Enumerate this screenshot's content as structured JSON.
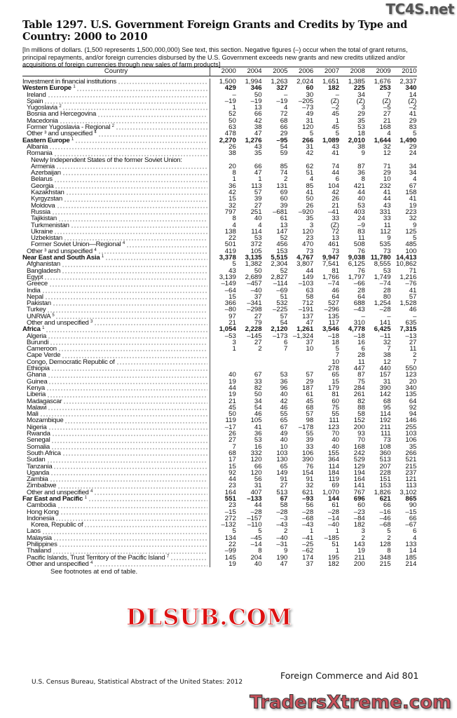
{
  "title": "Table 1297. U.S. Government Foreign Grants and Credits by Type and Country: 2000 to 2010",
  "note": "[In millions of dollars. (1,500 represents 1,500,000,000) See text, this section. Negative figures (–) occur when the total of grant returns, principal repayments, and/or foreign currencies disbursed by the U.S. Government exceeds new grants and new credits utilized and/or acquisitions of foreign currencies through new sales of farm products]",
  "columns": [
    "Country",
    "2000",
    "2004",
    "2005",
    "2006",
    "2007",
    "2008",
    "2009",
    "2010"
  ],
  "rows": [
    {
      "label": "Investment in financial institutions",
      "level": 0,
      "v": [
        "1,500",
        "1,994",
        "1,263",
        "2,024",
        "1,651",
        "1,385",
        "1,676",
        "2,337"
      ]
    },
    {
      "label": "Western Europe",
      "sup": "1",
      "level": 0,
      "bold": true,
      "v": [
        "429",
        "346",
        "327",
        "60",
        "182",
        "225",
        "253",
        "340"
      ]
    },
    {
      "label": "Ireland",
      "level": 1,
      "v": [
        "–",
        "50",
        "–",
        "30",
        "–",
        "34",
        "7",
        "14"
      ]
    },
    {
      "label": "Spain",
      "level": 1,
      "v": [
        "–19",
        "–19",
        "–19",
        "–205",
        "(Z)",
        "(Z)",
        "(Z)",
        "(Z)"
      ]
    },
    {
      "label": "Yugoslavia",
      "sup": "2",
      "level": 1,
      "v": [
        "1",
        "13",
        "4",
        "–73",
        "–2",
        "3",
        "–5",
        "–2"
      ]
    },
    {
      "label": "Bosnia and Hercegovina",
      "level": 1,
      "v": [
        "52",
        "66",
        "72",
        "49",
        "45",
        "29",
        "27",
        "41"
      ]
    },
    {
      "label": "Macedonia",
      "level": 1,
      "v": [
        "50",
        "42",
        "68",
        "31",
        "1",
        "35",
        "21",
        "29"
      ]
    },
    {
      "label": "Former Yugoslavia - Regional",
      "sup": "2",
      "level": 1,
      "v": [
        "63",
        "38",
        "66",
        "120",
        "45",
        "53",
        "168",
        "83"
      ]
    },
    {
      "label": "Other ³ and unspecified",
      "sup": "4",
      "level": 1,
      "v": [
        "478",
        "47",
        "29",
        "5",
        "5",
        "18",
        "4",
        "5"
      ]
    },
    {
      "label": "Eastern Europe",
      "sup": "1",
      "level": 0,
      "bold": true,
      "v": [
        "2,270",
        "1,276",
        "–95",
        "266",
        "1,089",
        "2,010",
        "1,644",
        "1,490"
      ]
    },
    {
      "label": "Albania",
      "level": 1,
      "v": [
        "26",
        "43",
        "54",
        "31",
        "43",
        "38",
        "32",
        "29"
      ]
    },
    {
      "label": "Romania",
      "level": 1,
      "v": [
        "38",
        "35",
        "59",
        "42",
        "41",
        "9",
        "12",
        "24"
      ]
    },
    {
      "label": "Newly Independent States of the former Soviet Union:",
      "level": 2,
      "nodots": true,
      "v": [
        "",
        "",
        "",
        "",
        "",
        "",
        "",
        ""
      ]
    },
    {
      "label": "Armenia",
      "level": 2,
      "v": [
        "20",
        "66",
        "85",
        "62",
        "74",
        "87",
        "71",
        "34"
      ]
    },
    {
      "label": "Azerbaijan",
      "level": 2,
      "v": [
        "8",
        "47",
        "74",
        "51",
        "44",
        "36",
        "29",
        "34"
      ]
    },
    {
      "label": "Belarus",
      "level": 2,
      "v": [
        "1",
        "1",
        "2",
        "4",
        "6",
        "8",
        "10",
        "4"
      ]
    },
    {
      "label": "Georgia",
      "level": 2,
      "v": [
        "36",
        "113",
        "131",
        "85",
        "104",
        "421",
        "232",
        "67"
      ]
    },
    {
      "label": "Kazakhstan",
      "level": 2,
      "v": [
        "42",
        "57",
        "69",
        "41",
        "42",
        "44",
        "41",
        "158"
      ]
    },
    {
      "label": "Kyrgyzstan",
      "level": 2,
      "v": [
        "15",
        "39",
        "60",
        "50",
        "26",
        "40",
        "44",
        "41"
      ]
    },
    {
      "label": "Moldova",
      "level": 2,
      "v": [
        "32",
        "27",
        "39",
        "26",
        "21",
        "53",
        "43",
        "19"
      ]
    },
    {
      "label": "Russia",
      "level": 2,
      "v": [
        "797",
        "251",
        "–681",
        "–920",
        "–41",
        "403",
        "331",
        "223"
      ]
    },
    {
      "label": "Tajikistan",
      "level": 2,
      "v": [
        "8",
        "40",
        "61",
        "35",
        "33",
        "24",
        "33",
        "32"
      ]
    },
    {
      "label": "Turkmenistan",
      "level": 2,
      "v": [
        "4",
        "4",
        "13",
        "3",
        "(Z)",
        "–9",
        "11",
        "9"
      ]
    },
    {
      "label": "Ukraine",
      "level": 2,
      "v": [
        "138",
        "114",
        "147",
        "120",
        "72",
        "83",
        "112",
        "125"
      ]
    },
    {
      "label": "Uzbekistan",
      "level": 2,
      "v": [
        "22",
        "53",
        "52",
        "23",
        "13",
        "11",
        "9",
        "5"
      ]
    },
    {
      "label": "Former Soviet Union—Regional",
      "sup": "4",
      "level": 2,
      "v": [
        "501",
        "372",
        "456",
        "470",
        "461",
        "508",
        "535",
        "485"
      ]
    },
    {
      "label": "Other ³ and unspecified",
      "sup": "4",
      "level": 1,
      "v": [
        "419",
        "105",
        "153",
        "73",
        "73",
        "76",
        "73",
        "100"
      ]
    },
    {
      "label": "Near East and South Asia",
      "sup": "1",
      "level": 0,
      "bold": true,
      "v": [
        "3,378",
        "3,135",
        "5,515",
        "4,767",
        "9,947",
        "9,038",
        "11,780",
        "14,413"
      ]
    },
    {
      "label": "Afghanistan",
      "level": 1,
      "v": [
        "5",
        "1,382",
        "2,304",
        "3,807",
        "7,541",
        "6,125",
        "8,555",
        "10,862"
      ]
    },
    {
      "label": "Bangladesh",
      "level": 1,
      "v": [
        "43",
        "50",
        "52",
        "44",
        "81",
        "76",
        "53",
        "71"
      ]
    },
    {
      "label": "Egypt",
      "level": 1,
      "v": [
        "3,139",
        "2,689",
        "2,827",
        "149",
        "1,766",
        "1,797",
        "1,749",
        "1,216"
      ]
    },
    {
      "label": "Greece",
      "level": 1,
      "v": [
        "–149",
        "–457",
        "–114",
        "–103",
        "–74",
        "–66",
        "–74",
        "–76"
      ]
    },
    {
      "label": "India",
      "level": 1,
      "v": [
        "–64",
        "–40",
        "–69",
        "63",
        "46",
        "28",
        "28",
        "41"
      ]
    },
    {
      "label": "Nepal",
      "level": 1,
      "v": [
        "15",
        "37",
        "51",
        "58",
        "64",
        "64",
        "80",
        "57"
      ]
    },
    {
      "label": "Pakistan",
      "level": 1,
      "v": [
        "366",
        "–341",
        "532",
        "712",
        "527",
        "688",
        "1,254",
        "1,528"
      ]
    },
    {
      "label": "Turkey",
      "level": 1,
      "v": [
        "–80",
        "–298",
        "–225",
        "–191",
        "–296",
        "–43",
        "–28",
        "46"
      ]
    },
    {
      "label": "UNRWA",
      "sup": "5",
      "level": 1,
      "v": [
        "97",
        "27",
        "57",
        "137",
        "135",
        "–",
        "–",
        "–"
      ]
    },
    {
      "label": "Other and unspecified",
      "sup": "3",
      "level": 1,
      "v": [
        "21",
        "79",
        "54",
        "47",
        "117",
        "310",
        "141",
        "635"
      ]
    },
    {
      "label": "Africa",
      "sup": "1",
      "level": 0,
      "bold": true,
      "v": [
        "1,054",
        "2,228",
        "2,120",
        "1,261",
        "3,546",
        "4,778",
        "6,425",
        "7,315"
      ]
    },
    {
      "label": "Algeria",
      "level": 1,
      "v": [
        "–53",
        "–145",
        "–173",
        "–1,324",
        "–18",
        "–18",
        "–11",
        "–13"
      ]
    },
    {
      "label": "Burundi",
      "level": 1,
      "v": [
        "3",
        "27",
        "6",
        "37",
        "18",
        "16",
        "32",
        "27"
      ]
    },
    {
      "label": "Cameroon",
      "level": 1,
      "v": [
        "1",
        "2",
        "7",
        "10",
        "5",
        "6",
        "7",
        "11"
      ]
    },
    {
      "label": "Cape Verde",
      "level": 1,
      "v": [
        "",
        "",
        "",
        "",
        "7",
        "28",
        "38",
        "2"
      ]
    },
    {
      "label": "Congo, Democratic Republic of",
      "level": 1,
      "v": [
        "",
        "",
        "",
        "",
        "10",
        "11",
        "12",
        "7"
      ]
    },
    {
      "label": "Ethiopia",
      "level": 1,
      "v": [
        "",
        "",
        "",
        "",
        "278",
        "447",
        "440",
        "550"
      ]
    },
    {
      "label": "Ghana",
      "level": 1,
      "v": [
        "40",
        "67",
        "53",
        "57",
        "65",
        "87",
        "157",
        "123"
      ]
    },
    {
      "label": "Guinea",
      "level": 1,
      "v": [
        "19",
        "33",
        "36",
        "29",
        "15",
        "75",
        "31",
        "20"
      ]
    },
    {
      "label": "Kenya",
      "level": 1,
      "v": [
        "44",
        "82",
        "96",
        "187",
        "179",
        "284",
        "390",
        "340"
      ]
    },
    {
      "label": "Liberia",
      "level": 1,
      "v": [
        "19",
        "50",
        "40",
        "61",
        "81",
        "261",
        "142",
        "135"
      ]
    },
    {
      "label": "Madagascar",
      "level": 1,
      "v": [
        "21",
        "34",
        "42",
        "45",
        "60",
        "82",
        "68",
        "64"
      ]
    },
    {
      "label": "Malawi",
      "level": 1,
      "v": [
        "45",
        "54",
        "46",
        "68",
        "75",
        "88",
        "95",
        "92"
      ]
    },
    {
      "label": "Mali",
      "level": 1,
      "v": [
        "50",
        "46",
        "55",
        "57",
        "55",
        "58",
        "114",
        "94"
      ]
    },
    {
      "label": "Mozambique",
      "level": 1,
      "v": [
        "119",
        "105",
        "65",
        "98",
        "111",
        "152",
        "192",
        "146"
      ]
    },
    {
      "label": "Nigeria",
      "level": 1,
      "v": [
        "–17",
        "41",
        "67",
        "–178",
        "123",
        "200",
        "211",
        "255"
      ]
    },
    {
      "label": "Rwanda",
      "level": 1,
      "v": [
        "26",
        "36",
        "49",
        "55",
        "70",
        "93",
        "111",
        "103"
      ]
    },
    {
      "label": "Senegal",
      "level": 1,
      "v": [
        "27",
        "53",
        "40",
        "39",
        "40",
        "70",
        "73",
        "106"
      ]
    },
    {
      "label": "Somalia",
      "level": 1,
      "v": [
        "7",
        "16",
        "10",
        "33",
        "40",
        "168",
        "108",
        "35"
      ]
    },
    {
      "label": "South Africa",
      "level": 1,
      "v": [
        "68",
        "332",
        "103",
        "106",
        "155",
        "242",
        "360",
        "266"
      ]
    },
    {
      "label": "Sudan",
      "level": 1,
      "v": [
        "17",
        "120",
        "130",
        "390",
        "364",
        "529",
        "513",
        "521"
      ]
    },
    {
      "label": "Tanzania",
      "level": 1,
      "v": [
        "15",
        "66",
        "65",
        "76",
        "114",
        "129",
        "207",
        "215"
      ]
    },
    {
      "label": "Uganda",
      "level": 1,
      "v": [
        "92",
        "120",
        "149",
        "154",
        "184",
        "194",
        "228",
        "237"
      ]
    },
    {
      "label": "Zambia",
      "level": 1,
      "v": [
        "44",
        "56",
        "91",
        "91",
        "119",
        "164",
        "151",
        "121"
      ]
    },
    {
      "label": "Zimbabwe",
      "level": 1,
      "v": [
        "23",
        "31",
        "27",
        "32",
        "69",
        "141",
        "153",
        "113"
      ]
    },
    {
      "label": "Other and unspecified",
      "sup": "4",
      "level": 1,
      "v": [
        "164",
        "407",
        "513",
        "621",
        "1,070",
        "767",
        "1,826",
        "3,102"
      ]
    },
    {
      "label": "Far East and Pacific",
      "sup": "1",
      "level": 0,
      "bold": true,
      "v": [
        "551",
        "–133",
        "67",
        "–93",
        "144",
        "696",
        "621",
        "865"
      ]
    },
    {
      "label": "Cambodia",
      "level": 1,
      "v": [
        "23",
        "44",
        "58",
        "56",
        "61",
        "60",
        "66",
        "90"
      ]
    },
    {
      "label": "Hong Kong",
      "level": 1,
      "v": [
        "–15",
        "–28",
        "–28",
        "–28",
        "–28",
        "–23",
        "–16",
        "–15"
      ]
    },
    {
      "label": "Indonesia",
      "level": 1,
      "v": [
        "272",
        "–157",
        "–3",
        "–68",
        "–14",
        "–84",
        "–46",
        "66"
      ]
    },
    {
      "label": "Korea, Republic of",
      "level": 2,
      "v": [
        "–132",
        "–110",
        "–43",
        "–43",
        "–40",
        "182",
        "–68",
        "–67"
      ]
    },
    {
      "label": "Laos",
      "level": 1,
      "v": [
        "5",
        "5",
        "2",
        "1",
        "1",
        "3",
        "5",
        "6"
      ]
    },
    {
      "label": "Malaysia",
      "level": 1,
      "v": [
        "134",
        "–45",
        "–40",
        "–41",
        "–185",
        "2",
        "2",
        "4"
      ]
    },
    {
      "label": "Philippines",
      "level": 1,
      "v": [
        "22",
        "–14",
        "–31",
        "–25",
        "51",
        "143",
        "128",
        "133"
      ]
    },
    {
      "label": "Thailand",
      "level": 1,
      "v": [
        "–99",
        "8",
        "9",
        "–62",
        "1",
        "19",
        "8",
        "14"
      ]
    },
    {
      "label": "Pacific Islands,  Trust Territory of the Pacific Island",
      "sup": "7",
      "level": 1,
      "v": [
        "145",
        "204",
        "190",
        "174",
        "195",
        "211",
        "348",
        "185"
      ]
    },
    {
      "label": "Other and unspecified",
      "sup": "4",
      "level": 1,
      "v": [
        "19",
        "40",
        "47",
        "37",
        "182",
        "200",
        "215",
        "214"
      ]
    }
  ],
  "see_footnotes": "See footnotes at end of table.",
  "footer": {
    "section": "Foreign Commerce and Aid  801",
    "source": "U.S. Census Bureau, Statistical Abstract of the United States: 2012"
  },
  "watermarks": [
    "TC4S.net",
    "DLSUB.COM",
    "TradersXtreme.com"
  ]
}
